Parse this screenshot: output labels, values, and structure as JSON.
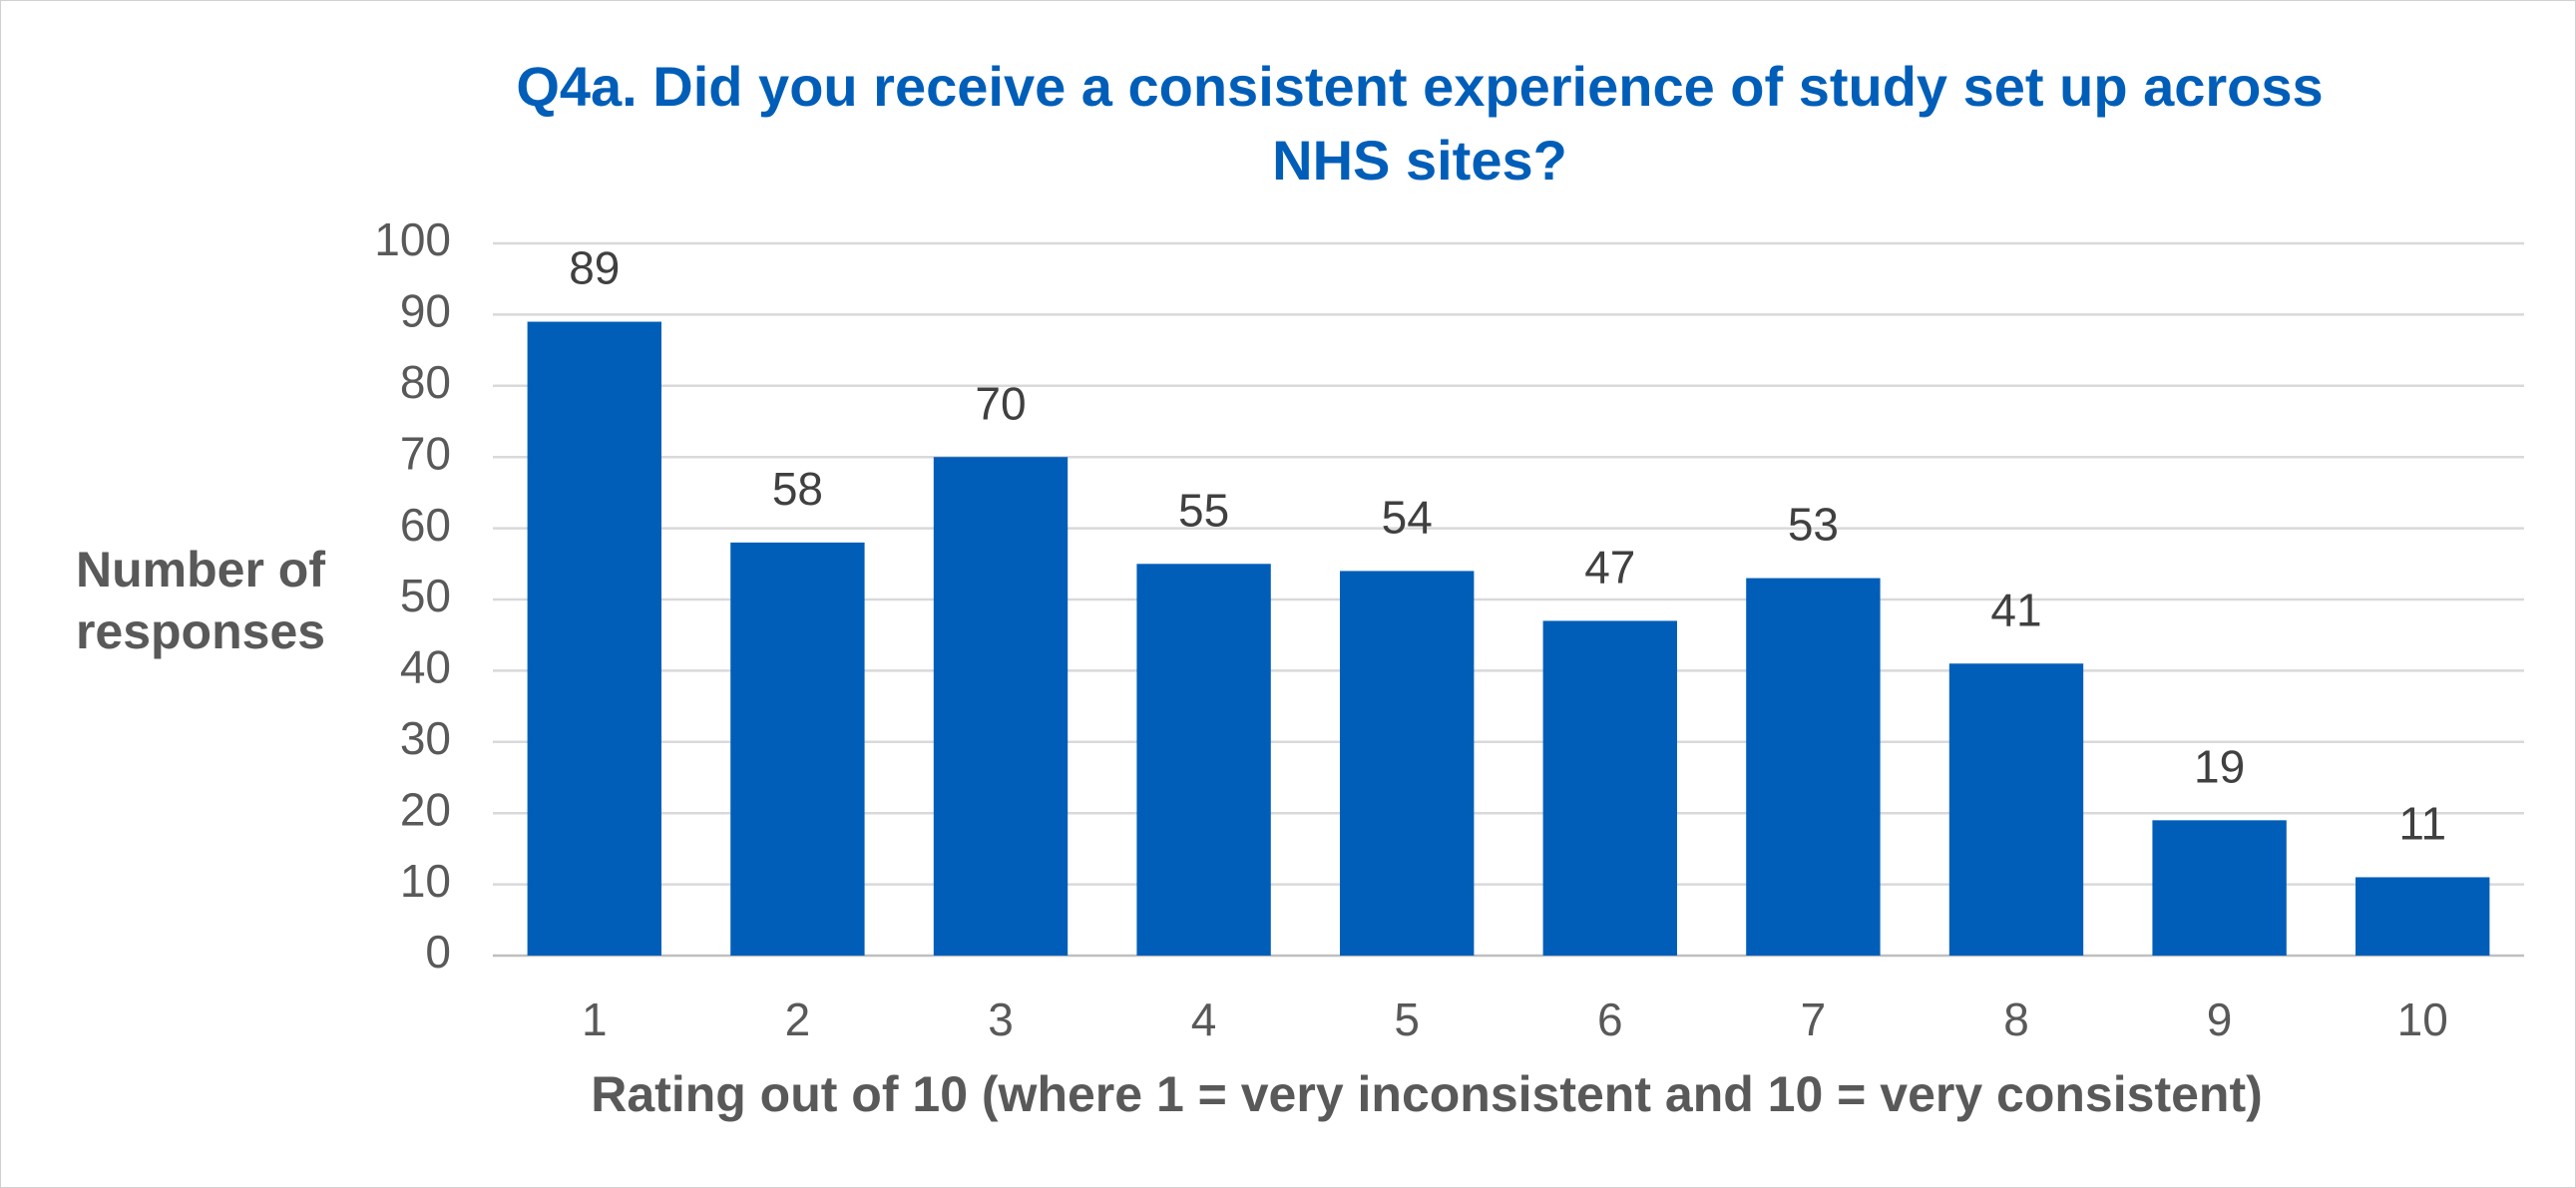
{
  "chart_data": {
    "type": "bar",
    "title": "Q4a. Did you receive a consistent experience of study set up across NHS sites?",
    "x_label": "Rating out of 10 (where 1 = very inconsistent and 10 = very consistent)",
    "y_label": "Number of responses",
    "categories": [
      "1",
      "2",
      "3",
      "4",
      "5",
      "6",
      "7",
      "8",
      "9",
      "10"
    ],
    "values": [
      89,
      58,
      70,
      55,
      54,
      47,
      53,
      41,
      19,
      11
    ],
    "color": "#005EB8",
    "ylim": [
      0,
      100
    ],
    "yticks": [
      0,
      10,
      20,
      30,
      40,
      50,
      60,
      70,
      80,
      90,
      100
    ],
    "grid": true,
    "data_labels": true
  }
}
